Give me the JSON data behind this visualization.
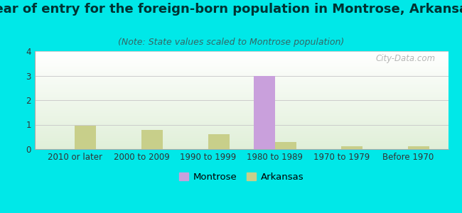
{
  "title": "Year of entry for the foreign-born population in Montrose, Arkansas",
  "subtitle": "(Note: State values scaled to Montrose population)",
  "categories": [
    "2010 or later",
    "2000 to 2009",
    "1990 to 1999",
    "1980 to 1989",
    "1970 to 1979",
    "Before 1970"
  ],
  "montrose_values": [
    0,
    0,
    0,
    3,
    0,
    0
  ],
  "arkansas_values": [
    0.95,
    0.78,
    0.6,
    0.3,
    0.12,
    0.12
  ],
  "montrose_color": "#c9a0dc",
  "arkansas_color": "#c8cf8a",
  "background_color": "#00e8e8",
  "ylim": [
    0,
    4
  ],
  "yticks": [
    0,
    1,
    2,
    3,
    4
  ],
  "bar_width": 0.32,
  "title_fontsize": 13,
  "subtitle_fontsize": 9,
  "tick_fontsize": 8.5,
  "legend_fontsize": 9.5,
  "watermark_text": "City-Data.com",
  "grid_color": "#cccccc",
  "title_color": "#003333",
  "subtitle_color": "#336666"
}
